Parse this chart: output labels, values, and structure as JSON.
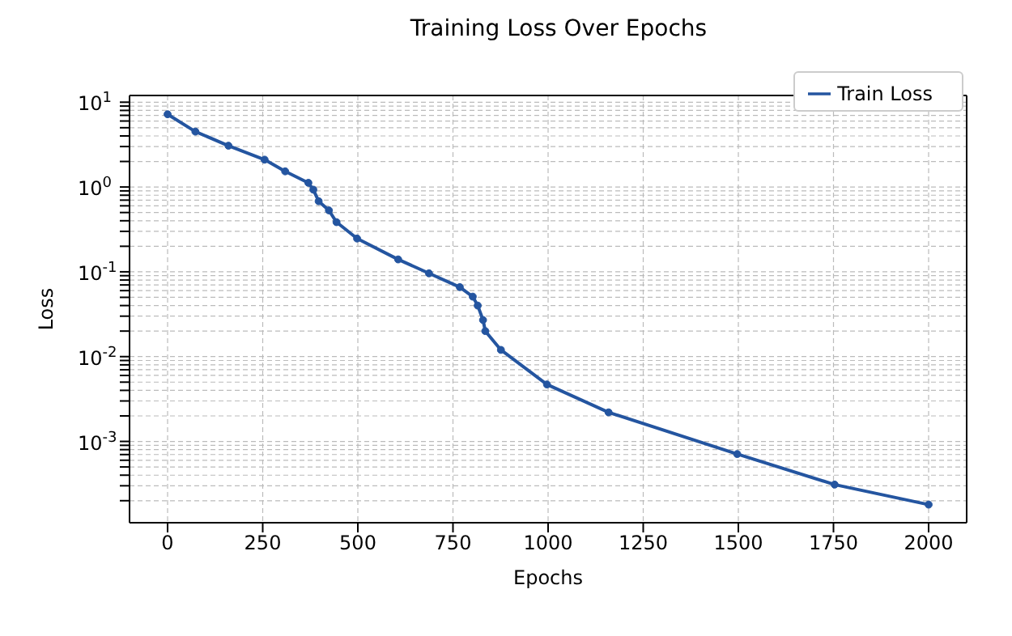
{
  "chart_data": {
    "type": "line",
    "title": "Training Loss Over Epochs",
    "xlabel": "Epochs",
    "ylabel": "Loss",
    "log": "y",
    "grid": true,
    "legend": "top right",
    "marker": "circle",
    "line_style": "solid",
    "xlim": [
      -100,
      2100
    ],
    "xticks": [
      0,
      250,
      500,
      750,
      1000,
      1250,
      1500,
      1750,
      2000
    ],
    "ylim": [
      0.00011,
      12
    ],
    "yticks": [
      {
        "value": 0.0002,
        "label": null
      },
      {
        "value": 0.0003,
        "label": null
      },
      {
        "value": 0.0004,
        "label": null
      },
      {
        "value": 0.0005,
        "label": null
      },
      {
        "value": 0.0006,
        "label": null
      },
      {
        "value": 0.0007,
        "label": null
      },
      {
        "value": 0.0008,
        "label": null
      },
      {
        "value": 0.0009,
        "label": null
      },
      {
        "value": 0.001,
        "label": "10$^{-3}$"
      },
      {
        "value": 0.002,
        "label": null
      },
      {
        "value": 0.003,
        "label": null
      },
      {
        "value": 0.004,
        "label": null
      },
      {
        "value": 0.005,
        "label": null
      },
      {
        "value": 0.006,
        "label": null
      },
      {
        "value": 0.007,
        "label": null
      },
      {
        "value": 0.008,
        "label": null
      },
      {
        "value": 0.009,
        "label": null
      },
      {
        "value": 0.01,
        "label": "10$^{-2}$"
      },
      {
        "value": 0.02,
        "label": null
      },
      {
        "value": 0.03,
        "label": null
      },
      {
        "value": 0.04,
        "label": null
      },
      {
        "value": 0.05,
        "label": null
      },
      {
        "value": 0.06,
        "label": null
      },
      {
        "value": 0.07,
        "label": null
      },
      {
        "value": 0.08,
        "label": null
      },
      {
        "value": 0.09,
        "label": null
      },
      {
        "value": 0.1,
        "label": "10$^{-1}$"
      },
      {
        "value": 0.2,
        "label": null
      },
      {
        "value": 0.3,
        "label": null
      },
      {
        "value": 0.4,
        "label": null
      },
      {
        "value": 0.5,
        "label": null
      },
      {
        "value": 0.6,
        "label": null
      },
      {
        "value": 0.7,
        "label": null
      },
      {
        "value": 0.8,
        "label": null
      },
      {
        "value": 0.9,
        "label": null
      },
      {
        "value": 1,
        "label": "10$^{0}$"
      },
      {
        "value": 2,
        "label": null
      },
      {
        "value": 3,
        "label": null
      },
      {
        "value": 4,
        "label": null
      },
      {
        "value": 5,
        "label": null
      },
      {
        "value": 6,
        "label": null
      },
      {
        "value": 7,
        "label": null
      },
      {
        "value": 8,
        "label": null
      },
      {
        "value": 9,
        "label": null
      },
      {
        "value": 10,
        "label": "10$^{1}$"
      }
    ],
    "x": [
      0,
      73,
      160,
      255,
      309,
      370,
      383,
      397,
      424,
      444,
      498,
      606,
      687,
      768,
      802,
      815,
      829,
      835,
      876,
      997,
      1159,
      1497,
      1753,
      2000
    ],
    "series": [
      {
        "name": "Train Loss",
        "color": "#2455a0",
        "values": [
          7.2,
          4.5,
          3.07,
          2.1,
          1.53,
          1.12,
          0.93,
          0.68,
          0.53,
          0.385,
          0.247,
          0.14,
          0.096,
          0.066,
          0.051,
          0.04,
          0.027,
          0.02,
          0.012,
          0.0047,
          0.0022,
          0.00071,
          0.00031,
          0.00018
        ]
      }
    ]
  }
}
